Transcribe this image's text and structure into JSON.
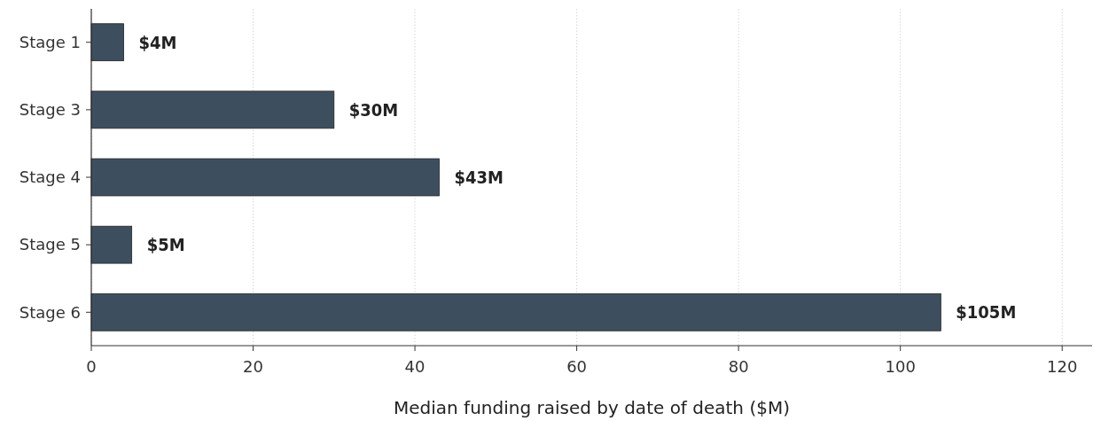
{
  "chart_data": {
    "type": "bar",
    "orientation": "horizontal",
    "categories": [
      "Stage 1",
      "Stage 3",
      "Stage 4",
      "Stage 5",
      "Stage 6"
    ],
    "values": [
      4,
      30,
      43,
      5,
      105
    ],
    "value_labels": [
      "$4M",
      "$30M",
      "$43M",
      "$5M",
      "$105M"
    ],
    "color": "#3d4f5f",
    "xlabel": "Median funding raised by date of death ($M)",
    "xlim": [
      0,
      123.7
    ],
    "xticks": [
      0,
      20,
      40,
      60,
      80,
      100,
      120
    ],
    "grid": "x"
  }
}
